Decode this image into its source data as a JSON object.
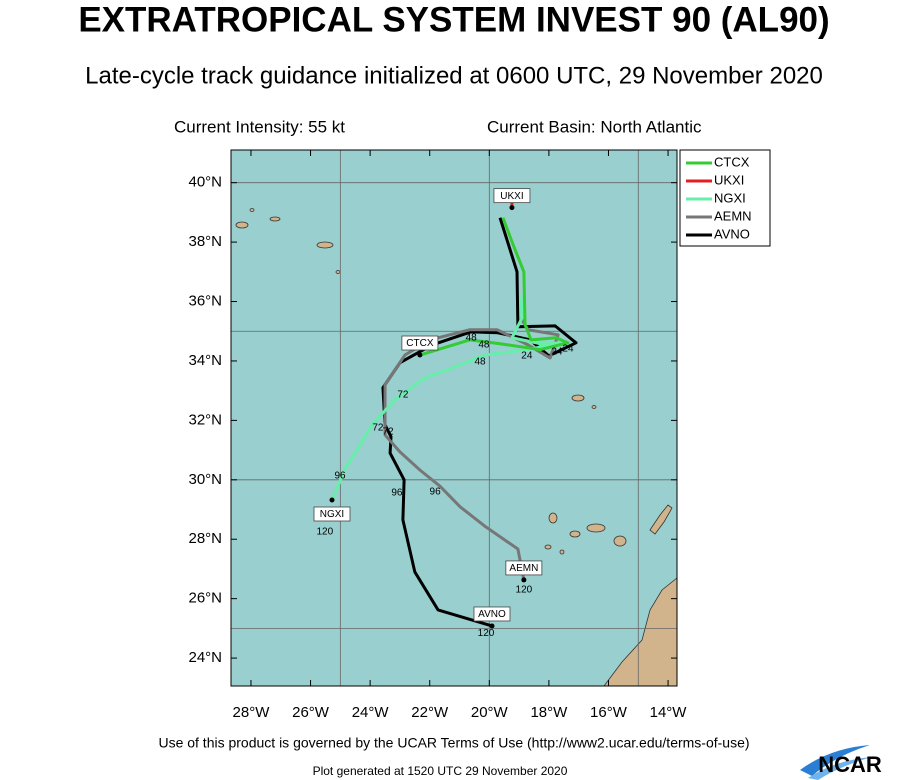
{
  "chart_data": {
    "type": "line",
    "title": "EXTRATROPICAL SYSTEM INVEST 90 (AL90)",
    "subtitle": "Late-cycle track guidance initialized at 0600 UTC, 29 November 2020",
    "current_intensity": "Current Intensity: 55 kt",
    "current_basin": "Current Basin: North Atlantic",
    "terms": "Use of this product is governed by the UCAR Terms of Use (http://www2.ucar.edu/terms-of-use)",
    "footer": "Plot generated at 1520 UTC   29 November 2020",
    "logo": "NCAR",
    "xlim": [
      -28.67,
      -13.7
    ],
    "ylim": [
      23.06,
      41.1
    ],
    "xticks": [
      {
        "value": -28,
        "label": "28°W"
      },
      {
        "value": -26,
        "label": "26°W"
      },
      {
        "value": -24,
        "label": "24°W"
      },
      {
        "value": -22,
        "label": "22°W"
      },
      {
        "value": -20,
        "label": "20°W"
      },
      {
        "value": -18,
        "label": "18°W"
      },
      {
        "value": -16,
        "label": "16°W"
      },
      {
        "value": -14,
        "label": "14°W"
      }
    ],
    "yticks": [
      {
        "value": 24,
        "label": "24°N"
      },
      {
        "value": 26,
        "label": "26°N"
      },
      {
        "value": 28,
        "label": "28°N"
      },
      {
        "value": 30,
        "label": "30°N"
      },
      {
        "value": 32,
        "label": "32°N"
      },
      {
        "value": 34,
        "label": "34°N"
      },
      {
        "value": 36,
        "label": "36°N"
      },
      {
        "value": 38,
        "label": "38°N"
      },
      {
        "value": 40,
        "label": "40°N"
      }
    ],
    "xgrid": [
      -25,
      -20,
      -15
    ],
    "ygrid": [
      25,
      30,
      35,
      40
    ],
    "series": [
      {
        "name": "CTCX",
        "color": "#33cc33",
        "x": [
          -19.54,
          -19.2,
          -18.84,
          -18.8,
          -18.6,
          -17.76,
          -17.36,
          -18.3,
          -19.64,
          -20.65,
          -22.33
        ],
        "values": [
          38.82,
          37.91,
          37.0,
          35.22,
          34.71,
          34.78,
          34.61,
          34.38,
          34.58,
          34.71,
          34.2
        ]
      },
      {
        "name": "UKXI",
        "color": "#e02020",
        "x": [
          -19.24,
          -19.24
        ],
        "values": [
          39.76,
          39.16
        ]
      },
      {
        "name": "NGXI",
        "color": "#66eeaa",
        "x": [
          -18.94,
          -18.9,
          -19.24,
          -18.27,
          -17.59,
          -18.74,
          -20.15,
          -21.15,
          -22.16,
          -23.17,
          -23.94,
          -24.44,
          -24.81,
          -25.28
        ],
        "values": [
          36.23,
          35.45,
          34.78,
          34.58,
          34.61,
          34.38,
          34.2,
          33.8,
          33.43,
          32.69,
          31.85,
          31.0,
          30.43,
          29.32
        ]
      },
      {
        "name": "AEMN",
        "color": "#777777",
        "x": [
          -18.94,
          -18.7,
          -17.69,
          -17.96,
          -18.7,
          -19.74,
          -20.65,
          -21.99,
          -22.83,
          -23.5,
          -23.5,
          -23.0,
          -22.33,
          -21.66,
          -20.98,
          -20.11,
          -19.04,
          -18.84
        ],
        "values": [
          35.45,
          35.05,
          34.88,
          34.1,
          34.54,
          35.05,
          35.05,
          34.71,
          34.2,
          33.2,
          31.51,
          30.94,
          30.33,
          29.79,
          29.09,
          28.41,
          27.67,
          26.63
        ]
      },
      {
        "name": "AVNO",
        "color": "#000000",
        "x": [
          -19.64,
          -19.07,
          -19.04,
          -17.79,
          -17.09,
          -18.0,
          -18.63,
          -19.71,
          -20.61,
          -21.92,
          -23.0,
          -23.57,
          -23.5,
          -23.3,
          -23.33,
          -22.86,
          -22.9,
          -22.5,
          -21.72,
          -19.91
        ],
        "values": [
          38.82,
          37.0,
          35.15,
          35.18,
          34.61,
          34.17,
          34.71,
          34.95,
          34.98,
          34.54,
          33.94,
          33.1,
          31.85,
          31.45,
          30.9,
          30.0,
          28.65,
          26.9,
          25.62,
          25.08
        ]
      }
    ],
    "annotations": [
      {
        "text": "48",
        "x": -20.61,
        "y": 34.78
      },
      {
        "text": "48",
        "x": -20.18,
        "y": 34.54
      },
      {
        "text": "48",
        "x": -20.31,
        "y": 33.97
      },
      {
        "text": "24",
        "x": -18.74,
        "y": 34.17
      },
      {
        "text": "24",
        "x": -17.73,
        "y": 34.31
      },
      {
        "text": "24",
        "x": -17.36,
        "y": 34.41
      },
      {
        "text": "72",
        "x": -22.9,
        "y": 32.86
      },
      {
        "text": "72",
        "x": -23.74,
        "y": 31.75
      },
      {
        "text": "72",
        "x": -23.4,
        "y": 31.61
      },
      {
        "text": "96",
        "x": -25.01,
        "y": 30.13
      },
      {
        "text": "96",
        "x": -23.1,
        "y": 29.56
      },
      {
        "text": "96",
        "x": -21.82,
        "y": 29.59
      },
      {
        "text": "120",
        "x": -25.52,
        "y": 28.25
      },
      {
        "text": "120",
        "x": -18.84,
        "y": 26.29
      },
      {
        "text": "120",
        "x": -20.11,
        "y": 24.84
      }
    ]
  }
}
